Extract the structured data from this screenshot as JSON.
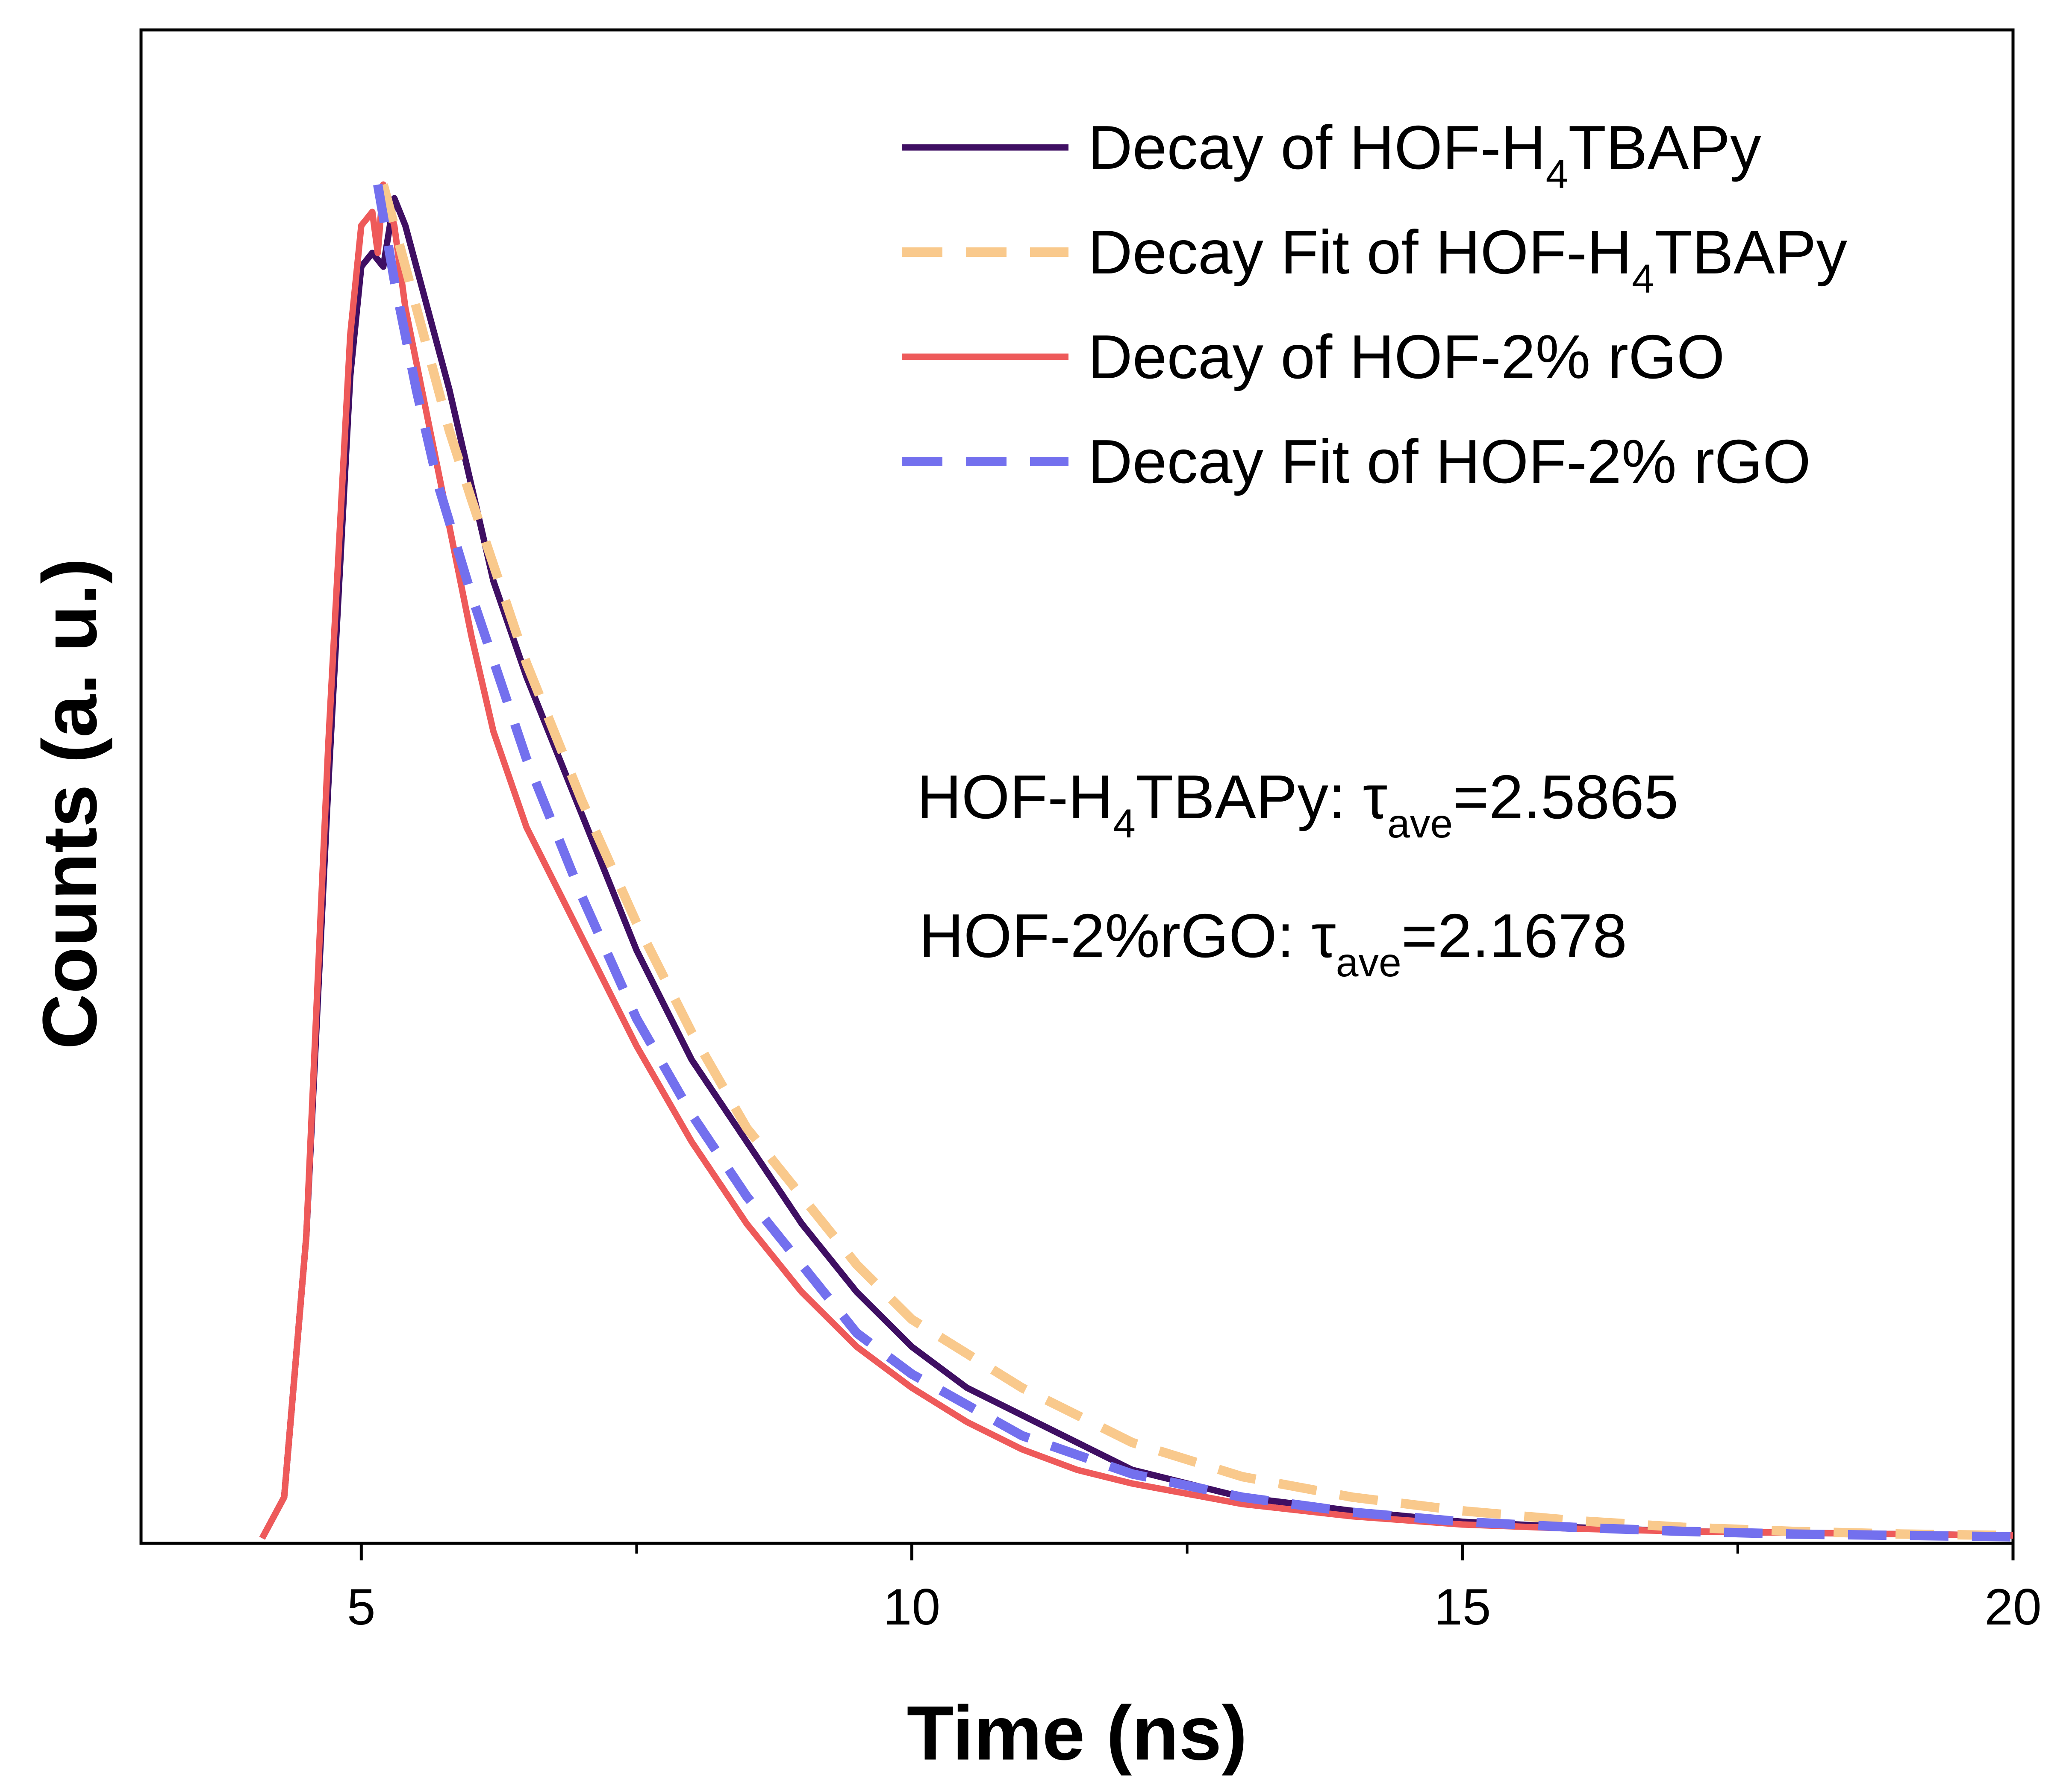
{
  "chart_data": {
    "type": "line",
    "xlabel": "Time (ns)",
    "ylabel": "Counts (a. u.)",
    "xlim": [
      3.0,
      20.0
    ],
    "ylim": [
      0.0,
      1.0
    ],
    "x_ticks": [
      5,
      10,
      15,
      20
    ],
    "x_tick_labels": [
      "5",
      "10",
      "15",
      "20"
    ],
    "y_tick_labels": [],
    "grid": false,
    "legend_position": "top-right",
    "series": [
      {
        "name": "Decay of HOF-H₄TBAPy",
        "label_main": "Decay of HOF-H",
        "label_sub": "4",
        "label_tail": "TBAPy",
        "style": "solid",
        "color": "#3f0f63",
        "x": [
          4.1,
          4.3,
          4.5,
          4.7,
          4.9,
          5.0,
          5.1,
          5.2,
          5.3,
          5.4,
          5.6,
          5.8,
          6.0,
          6.2,
          6.5,
          7.0,
          7.5,
          8.0,
          8.5,
          9.0,
          9.5,
          10.0,
          10.5,
          11.0,
          11.5,
          12.0,
          13.0,
          14.0,
          15.0,
          16.0,
          17.0,
          18.0,
          19.0,
          20.0
        ],
        "values": [
          0.0,
          0.03,
          0.22,
          0.55,
          0.85,
          0.93,
          0.94,
          0.93,
          0.98,
          0.96,
          0.9,
          0.84,
          0.77,
          0.7,
          0.63,
          0.53,
          0.43,
          0.35,
          0.29,
          0.23,
          0.18,
          0.14,
          0.11,
          0.09,
          0.07,
          0.05,
          0.03,
          0.02,
          0.012,
          0.008,
          0.005,
          0.004,
          0.003,
          0.002
        ]
      },
      {
        "name": "Decay Fit of HOF-H₄TBAPy",
        "label_main": "Decay Fit of HOF-H",
        "label_sub": "4",
        "label_tail": "TBAPy",
        "style": "dashed",
        "color": "#f9c98c",
        "x": [
          5.2,
          5.4,
          5.6,
          5.8,
          6.0,
          6.5,
          7.0,
          7.5,
          8.0,
          8.5,
          9.0,
          9.5,
          10.0,
          11.0,
          12.0,
          13.0,
          14.0,
          15.0,
          16.0,
          17.0,
          18.0,
          19.0,
          20.0
        ],
        "values": [
          0.99,
          0.93,
          0.87,
          0.81,
          0.76,
          0.64,
          0.54,
          0.45,
          0.37,
          0.3,
          0.25,
          0.2,
          0.16,
          0.11,
          0.07,
          0.045,
          0.03,
          0.02,
          0.013,
          0.008,
          0.005,
          0.003,
          0.002
        ]
      },
      {
        "name": "Decay of HOF-2% rGO",
        "label_main": "Decay of HOF-2% rGO",
        "label_sub": "",
        "label_tail": "",
        "style": "solid",
        "color": "#ee5a5a",
        "x": [
          4.1,
          4.3,
          4.5,
          4.7,
          4.9,
          5.0,
          5.1,
          5.15,
          5.2,
          5.3,
          5.4,
          5.6,
          5.8,
          6.0,
          6.2,
          6.5,
          7.0,
          7.5,
          8.0,
          8.5,
          9.0,
          9.5,
          10.0,
          10.5,
          11.0,
          11.5,
          12.0,
          13.0,
          14.0,
          15.0,
          16.0,
          17.0,
          18.0,
          19.0,
          20.0
        ],
        "values": [
          0.0,
          0.03,
          0.22,
          0.58,
          0.88,
          0.96,
          0.97,
          0.94,
          0.99,
          0.96,
          0.9,
          0.82,
          0.74,
          0.66,
          0.59,
          0.52,
          0.44,
          0.36,
          0.29,
          0.23,
          0.18,
          0.14,
          0.11,
          0.085,
          0.065,
          0.05,
          0.04,
          0.025,
          0.016,
          0.01,
          0.007,
          0.005,
          0.004,
          0.003,
          0.002
        ]
      },
      {
        "name": "Decay Fit of HOF-2% rGO",
        "label_main": "Decay Fit of HOF-2% rGO",
        "label_sub": "",
        "label_tail": "",
        "style": "dashed",
        "color": "#7370ee",
        "x": [
          5.15,
          5.3,
          5.5,
          5.7,
          6.0,
          6.5,
          7.0,
          7.5,
          8.0,
          8.5,
          9.0,
          9.5,
          10.0,
          11.0,
          12.0,
          13.0,
          14.0,
          15.0,
          16.0,
          17.0,
          18.0,
          19.0,
          20.0
        ],
        "values": [
          0.99,
          0.92,
          0.84,
          0.77,
          0.69,
          0.57,
          0.47,
          0.38,
          0.31,
          0.25,
          0.2,
          0.15,
          0.12,
          0.075,
          0.047,
          0.03,
          0.019,
          0.012,
          0.008,
          0.005,
          0.003,
          0.002,
          0.001
        ]
      }
    ],
    "annotations": [
      {
        "prefix": "HOF-H",
        "sub1": "4",
        "mid": "TBAPy: τ",
        "sub2": "ave",
        "suffix": "=2.5865"
      },
      {
        "prefix": "HOF-2%rGO: τ",
        "sub1": "",
        "mid": "",
        "sub2": "ave",
        "suffix": "=2.1678"
      }
    ]
  }
}
